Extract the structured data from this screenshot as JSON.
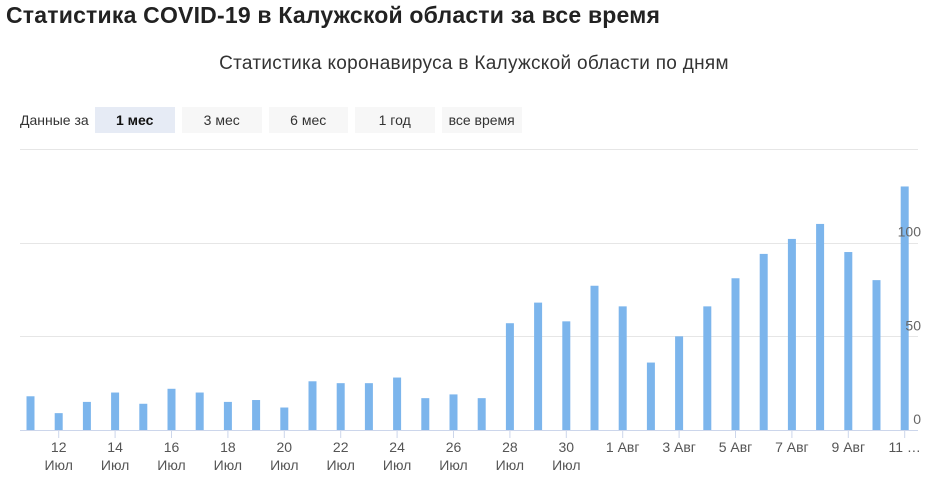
{
  "page": {
    "title": "Статистика COVID-19 в Калужской области за все время"
  },
  "range": {
    "label": "Данные за",
    "options": [
      "1 мес",
      "3 мес",
      "6 мес",
      "1 год",
      "все время"
    ],
    "selected": "1 мес"
  },
  "colors": {
    "bar": "#7cb5ec",
    "grid": "#e6e6e6",
    "axis": "#ccd6eb"
  },
  "chart_data": {
    "type": "bar",
    "title": "Статистика коронавируса в Калужской области по дням",
    "categories": [
      "11 Июл",
      "12 Июл",
      "13 Июл",
      "14 Июл",
      "15 Июл",
      "16 Июл",
      "17 Июл",
      "18 Июл",
      "19 Июл",
      "20 Июл",
      "21 Июл",
      "22 Июл",
      "23 Июл",
      "24 Июл",
      "25 Июл",
      "26 Июл",
      "27 Июл",
      "28 Июл",
      "29 Июл",
      "30 Июл",
      "31 Июл",
      "1 Авг",
      "2 Авг",
      "3 Авг",
      "4 Авг",
      "5 Авг",
      "6 Авг",
      "7 Авг",
      "8 Авг",
      "9 Авг",
      "10 Авг",
      "11 Авг"
    ],
    "values": [
      18,
      9,
      15,
      20,
      14,
      22,
      20,
      15,
      16,
      12,
      26,
      25,
      25,
      28,
      17,
      19,
      17,
      57,
      68,
      58,
      77,
      66,
      36,
      50,
      66,
      81,
      94,
      102,
      110,
      95,
      80,
      130
    ],
    "x_tick_labels": [
      {
        "index": 1,
        "line1": "12",
        "line2": "Июл"
      },
      {
        "index": 3,
        "line1": "14",
        "line2": "Июл"
      },
      {
        "index": 5,
        "line1": "16",
        "line2": "Июл"
      },
      {
        "index": 7,
        "line1": "18",
        "line2": "Июл"
      },
      {
        "index": 9,
        "line1": "20",
        "line2": "Июл"
      },
      {
        "index": 11,
        "line1": "22",
        "line2": "Июл"
      },
      {
        "index": 13,
        "line1": "24",
        "line2": "Июл"
      },
      {
        "index": 15,
        "line1": "26",
        "line2": "Июл"
      },
      {
        "index": 17,
        "line1": "28",
        "line2": "Июл"
      },
      {
        "index": 19,
        "line1": "30",
        "line2": "Июл"
      },
      {
        "index": 21,
        "line1": "1 Авг",
        "line2": ""
      },
      {
        "index": 23,
        "line1": "3 Авг",
        "line2": ""
      },
      {
        "index": 25,
        "line1": "5 Авг",
        "line2": ""
      },
      {
        "index": 27,
        "line1": "7 Авг",
        "line2": ""
      },
      {
        "index": 29,
        "line1": "9 Авг",
        "line2": ""
      },
      {
        "index": 31,
        "line1": "11 …",
        "line2": ""
      }
    ],
    "y_ticks": [
      0,
      50,
      100
    ],
    "ylim": [
      0,
      150
    ],
    "grid": true,
    "legend": false
  }
}
